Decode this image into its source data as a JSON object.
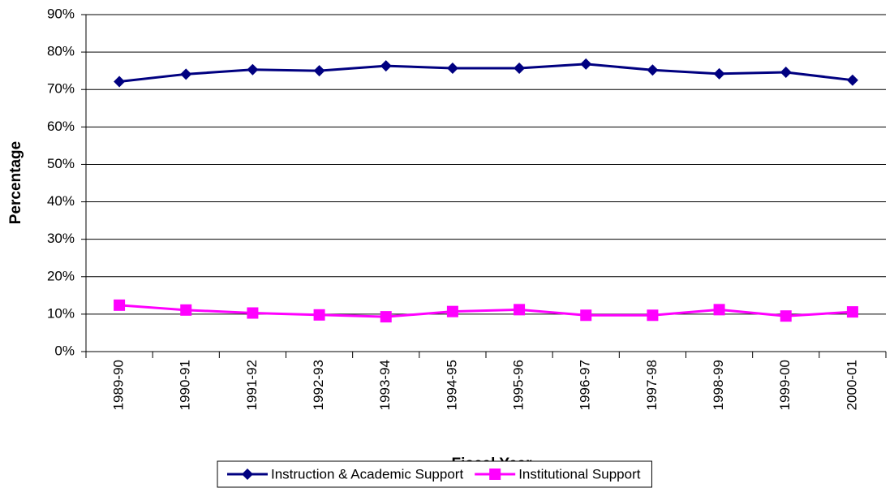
{
  "chart_data": {
    "type": "line",
    "x_label": "Fiscal Year",
    "y_label": "Percentage",
    "categories": [
      "1989-90",
      "1990-91",
      "1991-92",
      "1992-93",
      "1993-94",
      "1994-95",
      "1995-96",
      "1996-97",
      "1997-98",
      "1998-99",
      "1999-00",
      "2000-01"
    ],
    "series": [
      {
        "name": "Instruction & Academic Support",
        "color": "#000080",
        "marker": "diamond",
        "values": [
          72.1,
          74.1,
          75.3,
          75.0,
          76.3,
          75.7,
          75.7,
          76.8,
          75.2,
          74.2,
          74.6,
          72.5
        ]
      },
      {
        "name": "Institutional Support",
        "color": "#ff00ff",
        "marker": "square",
        "values": [
          12.4,
          11.1,
          10.3,
          9.8,
          9.3,
          10.7,
          11.2,
          9.7,
          9.7,
          11.2,
          9.5,
          10.6
        ]
      }
    ],
    "ylim": [
      0,
      90
    ],
    "yticks": [
      {
        "value": 0,
        "label": "0%"
      },
      {
        "value": 10,
        "label": "10%"
      },
      {
        "value": 20,
        "label": "20%"
      },
      {
        "value": 30,
        "label": "30%"
      },
      {
        "value": 40,
        "label": "40%"
      },
      {
        "value": 50,
        "label": "50%"
      },
      {
        "value": 60,
        "label": "60%"
      },
      {
        "value": 70,
        "label": "70%"
      },
      {
        "value": 80,
        "label": "80%"
      },
      {
        "value": 90,
        "label": "90%"
      }
    ],
    "grid": true,
    "legend": "bottom"
  }
}
